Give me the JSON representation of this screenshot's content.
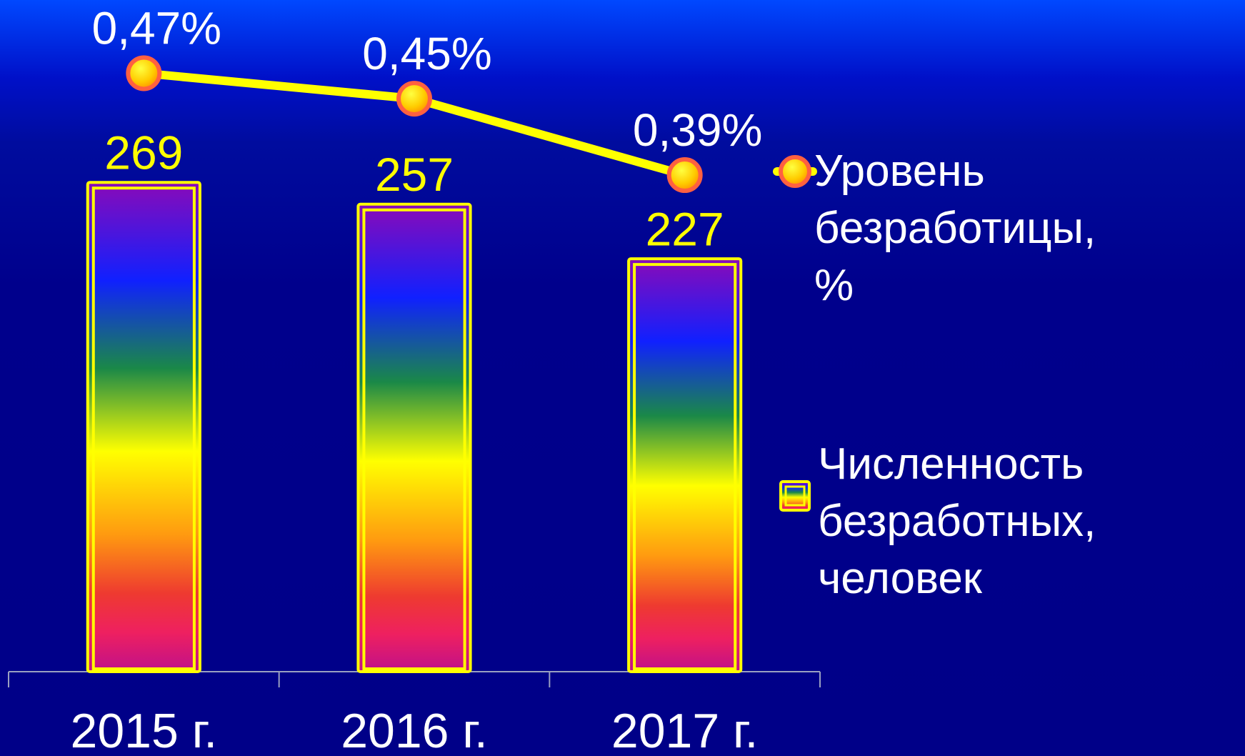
{
  "chart_data": {
    "type": "combo",
    "categories": [
      "2015 г.",
      "2016 г.",
      "2017 г."
    ],
    "series": [
      {
        "name": "Численность безработных, человек",
        "type": "bar",
        "color": "#ffff00",
        "values": [
          269,
          257,
          227
        ]
      },
      {
        "name": "Уровень безработицы, %",
        "type": "line",
        "axis": "y2",
        "color": "#ffff00",
        "values": [
          0.47,
          0.45,
          0.39
        ],
        "value_labels": [
          "0,47%",
          "0,45%",
          "0,39%"
        ]
      }
    ],
    "ylim": [
      0,
      350
    ],
    "y2lim": [
      0,
      0.5
    ],
    "legend": "right"
  }
}
